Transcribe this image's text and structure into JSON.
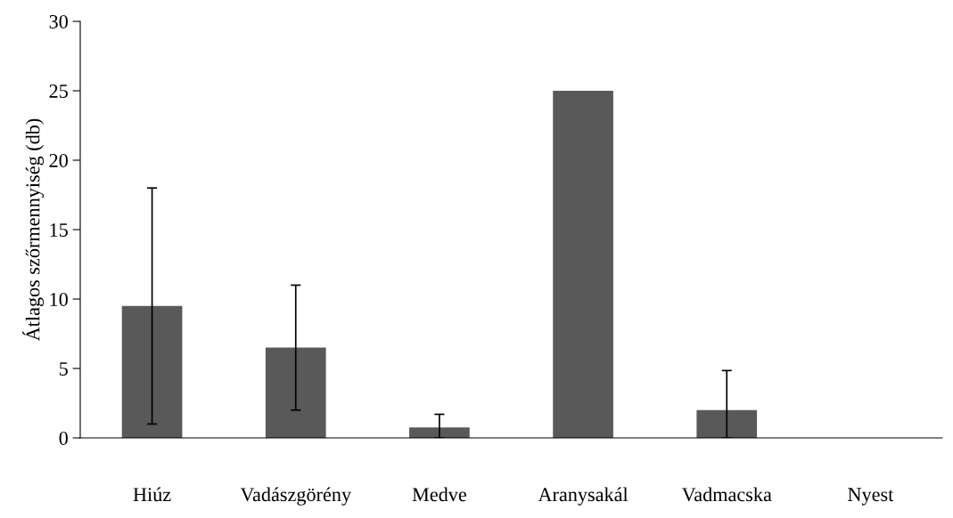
{
  "chart_data": {
    "type": "bar",
    "ylabel": "Átlagos szőrmennyiség (db)",
    "categories": [
      "Hiúz",
      "Vadászgörény",
      "Medve",
      "Aranysakál",
      "Vadmacska",
      "Nyest"
    ],
    "values": [
      9.5,
      6.5,
      0.75,
      25,
      2,
      0
    ],
    "errors": [
      8.5,
      4.5,
      [
        0,
        1.7
      ],
      null,
      [
        0,
        4.85
      ],
      null
    ],
    "color": "#595959",
    "ylim": [
      0,
      30
    ],
    "yticks": [
      0,
      5,
      10,
      15,
      20,
      25,
      30
    ],
    "grid": false,
    "legend": false
  }
}
